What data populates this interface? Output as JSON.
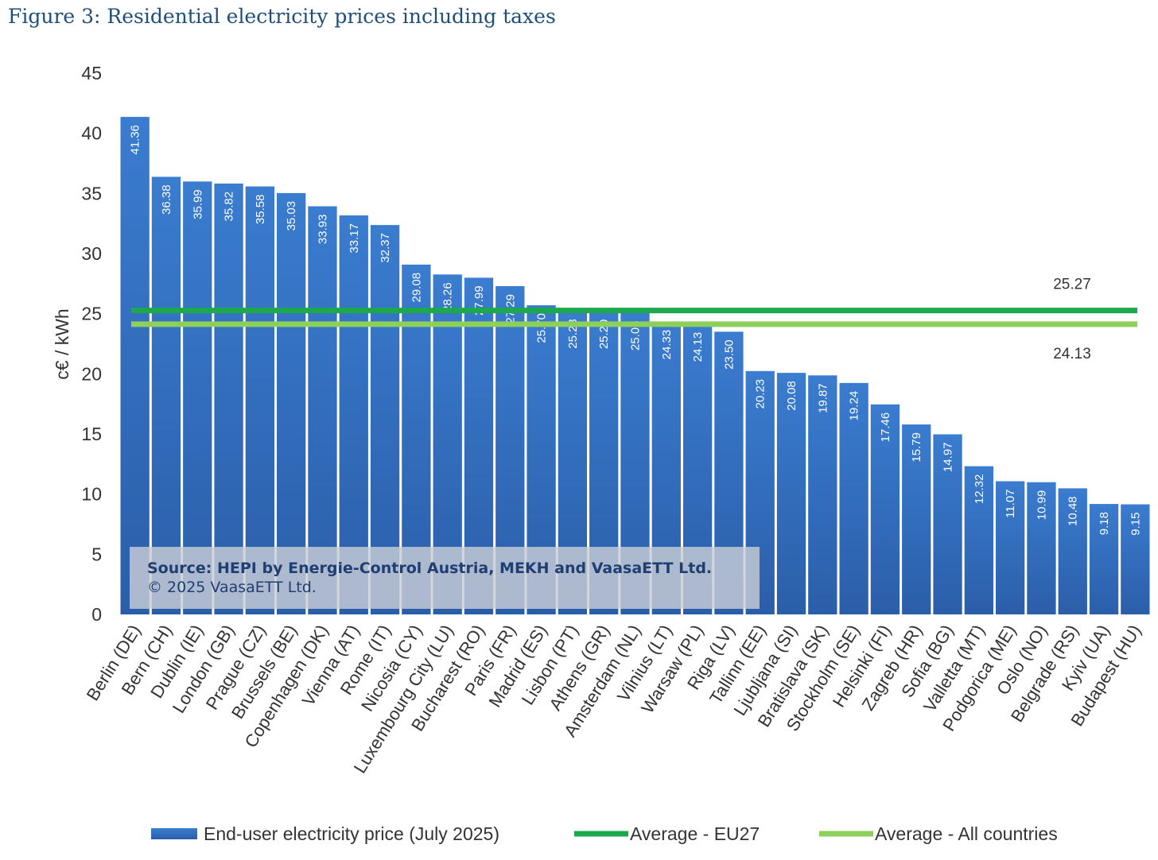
{
  "chart_data": {
    "type": "bar",
    "title": "Figure 3: Residential electricity prices including taxes",
    "xlabel": "",
    "ylabel": "c€ / kWh",
    "ylim": [
      0,
      45
    ],
    "yticks": [
      0,
      5,
      10,
      15,
      20,
      25,
      30,
      35,
      40,
      45
    ],
    "grid": false,
    "legend_position": "bottom",
    "categories": [
      "Berlin (DE)",
      "Bern (CH)",
      "Dublin (IE)",
      "London (GB)",
      "Prague (CZ)",
      "Brussels (BE)",
      "Copenhagen (DK)",
      "Vienna (AT)",
      "Rome (IT)",
      "Nicosia (CY)",
      "Luxembourg City (LU)",
      "Bucharest (RO)",
      "Paris (FR)",
      "Madrid (ES)",
      "Lisbon (PT)",
      "Athens (GR)",
      "Amsterdam (NL)",
      "Vilnius (LT)",
      "Warsaw (PL)",
      "Riga (LV)",
      "Tallinn (EE)",
      "Ljubljana (SI)",
      "Bratislava (SK)",
      "Stockholm (SE)",
      "Helsinki (FI)",
      "Zagreb (HR)",
      "Sofia (BG)",
      "Valletta (MT)",
      "Podgorica (ME)",
      "Oslo (NO)",
      "Belgrade (RS)",
      "Kyiv (UA)",
      "Budapest (HU)"
    ],
    "series": [
      {
        "name": "End-user electricity price (July 2025)",
        "kind": "bar",
        "color": "#3169b8",
        "values": [
          41.36,
          36.38,
          35.99,
          35.82,
          35.58,
          35.03,
          33.93,
          33.17,
          32.37,
          29.08,
          28.26,
          27.99,
          27.29,
          25.7,
          25.23,
          25.2,
          25.08,
          24.33,
          24.13,
          23.5,
          20.23,
          20.08,
          19.87,
          19.24,
          17.46,
          15.79,
          14.97,
          12.32,
          11.07,
          10.99,
          10.48,
          9.18,
          9.15
        ],
        "labels": [
          "41.36",
          "36.38",
          "35.99",
          "35.82",
          "35.58",
          "35.03",
          "33.93",
          "33.17",
          "32.37",
          "29.08",
          "28.26",
          "27.99",
          "27.29",
          "25.70",
          "25.23",
          "25.20",
          "25.08",
          "24.33",
          "24.13",
          "23.50",
          "20.23",
          "20.08",
          "19.87",
          "19.24",
          "17.46",
          "15.79",
          "14.97",
          "12.32",
          "11.07",
          "10.99",
          "10.48",
          "9.18",
          "9.15"
        ]
      },
      {
        "name": "Average - EU27",
        "kind": "line",
        "color": "#1ea84c",
        "value": 25.27,
        "label": "25.27"
      },
      {
        "name": "Average - All countries",
        "kind": "line",
        "color": "#8ccf5a",
        "value": 24.13,
        "label": "24.13"
      }
    ],
    "annotations": {
      "source_line1": "Source: HEPI by Energie-Control Austria, MEKH and VaasaETT Ltd.",
      "source_line2": "© 2025 VaasaETT Ltd."
    }
  }
}
